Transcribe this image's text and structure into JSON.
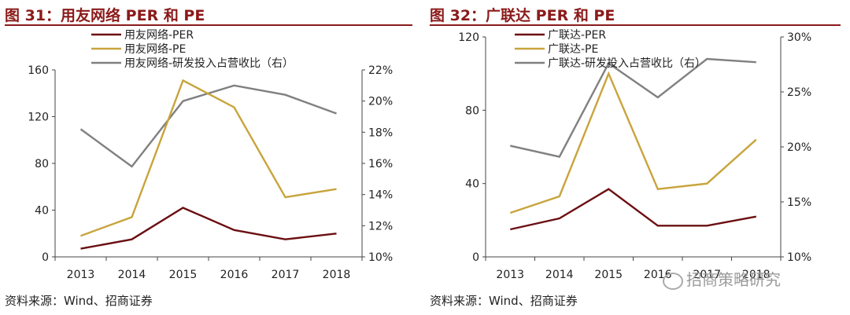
{
  "left": {
    "title": "图 31：用友网络 PER 和 PE",
    "source": "资料来源：Wind、招商证券"
  },
  "right": {
    "title": "图 32：广联达 PER 和 PE",
    "source": "资料来源：Wind、招商证券"
  },
  "watermark": "招商策略研究",
  "colors": {
    "per": "#6b0f12",
    "pe": "#c8a43c",
    "rd": "#808080",
    "title": "#8b1a1a"
  },
  "chart_data": [
    {
      "type": "line",
      "categories": [
        "2013",
        "2014",
        "2015",
        "2016",
        "2017",
        "2018"
      ],
      "ylim": [
        0,
        160
      ],
      "yticks": [
        "0",
        "40",
        "80",
        "120",
        "160"
      ],
      "y2lim": [
        0.1,
        0.22
      ],
      "y2ticks": [
        "10%",
        "12%",
        "14%",
        "16%",
        "18%",
        "20%",
        "22%"
      ],
      "legend_position": "top-left",
      "series": [
        {
          "name": "用友网络-PER",
          "axis": "left",
          "values": [
            7,
            15,
            42,
            23,
            15,
            20
          ]
        },
        {
          "name": "用友网络-PE",
          "axis": "left",
          "values": [
            18,
            34,
            151,
            128,
            51,
            58
          ]
        },
        {
          "name": "用友网络-研发投入占营收比（右）",
          "axis": "right",
          "values": [
            0.182,
            0.158,
            0.2,
            0.21,
            0.204,
            0.192
          ]
        }
      ]
    },
    {
      "type": "line",
      "categories": [
        "2013",
        "2014",
        "2015",
        "2016",
        "2017",
        "2018"
      ],
      "ylim": [
        0,
        120
      ],
      "yticks": [
        "0",
        "40",
        "80",
        "120"
      ],
      "y2lim": [
        0.1,
        0.3
      ],
      "y2ticks": [
        "10%",
        "15%",
        "20%",
        "25%",
        "30%"
      ],
      "legend_position": "top-left",
      "series": [
        {
          "name": "广联达-PER",
          "axis": "left",
          "values": [
            15,
            21,
            37,
            17,
            17,
            22
          ]
        },
        {
          "name": "广联达-PE",
          "axis": "left",
          "values": [
            24,
            33,
            100,
            37,
            40,
            64
          ]
        },
        {
          "name": "广联达-研发投入占营收比（右）",
          "axis": "right",
          "values": [
            0.201,
            0.191,
            0.276,
            0.245,
            0.28,
            0.277
          ]
        }
      ]
    }
  ]
}
